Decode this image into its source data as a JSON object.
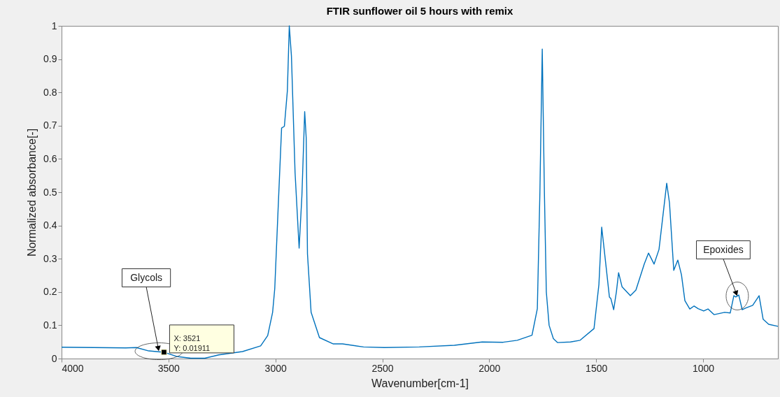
{
  "chart_data": {
    "type": "line",
    "title": "FTIR sunflower oil 5 hours with remix",
    "xlabel": "Wavenumber[cm-1]",
    "ylabel": "Normalized absorbance[-]",
    "xlim": [
      4000,
      650
    ],
    "xticks": [
      4000,
      3500,
      3000,
      2500,
      2000,
      1500,
      1000
    ],
    "ylim": [
      0,
      1
    ],
    "yticks": [
      0,
      0.1,
      0.2,
      0.3,
      0.4,
      0.5,
      0.6,
      0.7,
      0.8,
      0.9,
      1
    ],
    "grid": false,
    "marker": "none",
    "line_style": "solid",
    "series": [
      {
        "color": "#0072bd",
        "x": [
          4000,
          3700,
          3650,
          3592,
          3521,
          3460,
          3395,
          3330,
          3265,
          3154,
          3069,
          3036,
          3013,
          3003,
          2987,
          2971,
          2958,
          2944,
          2935,
          2925,
          2908,
          2889,
          2876,
          2863,
          2856,
          2850,
          2833,
          2794,
          2729,
          2686,
          2588,
          2490,
          2327,
          2163,
          2033,
          1935,
          1869,
          1800,
          1775,
          1763,
          1752,
          1742,
          1733,
          1720,
          1700,
          1680,
          1620,
          1575,
          1510,
          1487,
          1474,
          1454,
          1438,
          1431,
          1418,
          1405,
          1395,
          1379,
          1340,
          1314,
          1275,
          1255,
          1229,
          1206,
          1170,
          1157,
          1137,
          1118,
          1101,
          1085,
          1062,
          1042,
          1023,
          997,
          977,
          948,
          899,
          873,
          856,
          847,
          833,
          817,
          800,
          768,
          738,
          719,
          693,
          650
        ],
        "values": [
          0.034,
          0.032,
          0.033,
          0.023,
          0.019,
          0.006,
          0.001,
          0.001,
          0.011,
          0.021,
          0.038,
          0.069,
          0.139,
          0.21,
          0.454,
          0.693,
          0.698,
          0.805,
          1.0,
          0.91,
          0.559,
          0.332,
          0.49,
          0.742,
          0.664,
          0.315,
          0.139,
          0.063,
          0.044,
          0.044,
          0.035,
          0.033,
          0.035,
          0.04,
          0.05,
          0.049,
          0.055,
          0.07,
          0.15,
          0.5,
          0.93,
          0.5,
          0.2,
          0.1,
          0.06,
          0.048,
          0.05,
          0.055,
          0.09,
          0.223,
          0.395,
          0.279,
          0.185,
          0.18,
          0.147,
          0.202,
          0.258,
          0.216,
          0.189,
          0.206,
          0.284,
          0.317,
          0.284,
          0.328,
          0.527,
          0.468,
          0.265,
          0.296,
          0.252,
          0.174,
          0.149,
          0.158,
          0.15,
          0.143,
          0.149,
          0.132,
          0.139,
          0.137,
          0.189,
          0.185,
          0.191,
          0.147,
          0.152,
          0.16,
          0.189,
          0.118,
          0.103,
          0.097
        ]
      }
    ],
    "annotations": [
      {
        "text": "Glycols",
        "x": 3545,
        "y": 0.022
      },
      {
        "text": "Epoxides",
        "x": 840,
        "y": 0.188
      },
      {
        "text": "X: 3521\nY: 0.01911",
        "x": 3521,
        "y": 0.01911
      }
    ]
  }
}
